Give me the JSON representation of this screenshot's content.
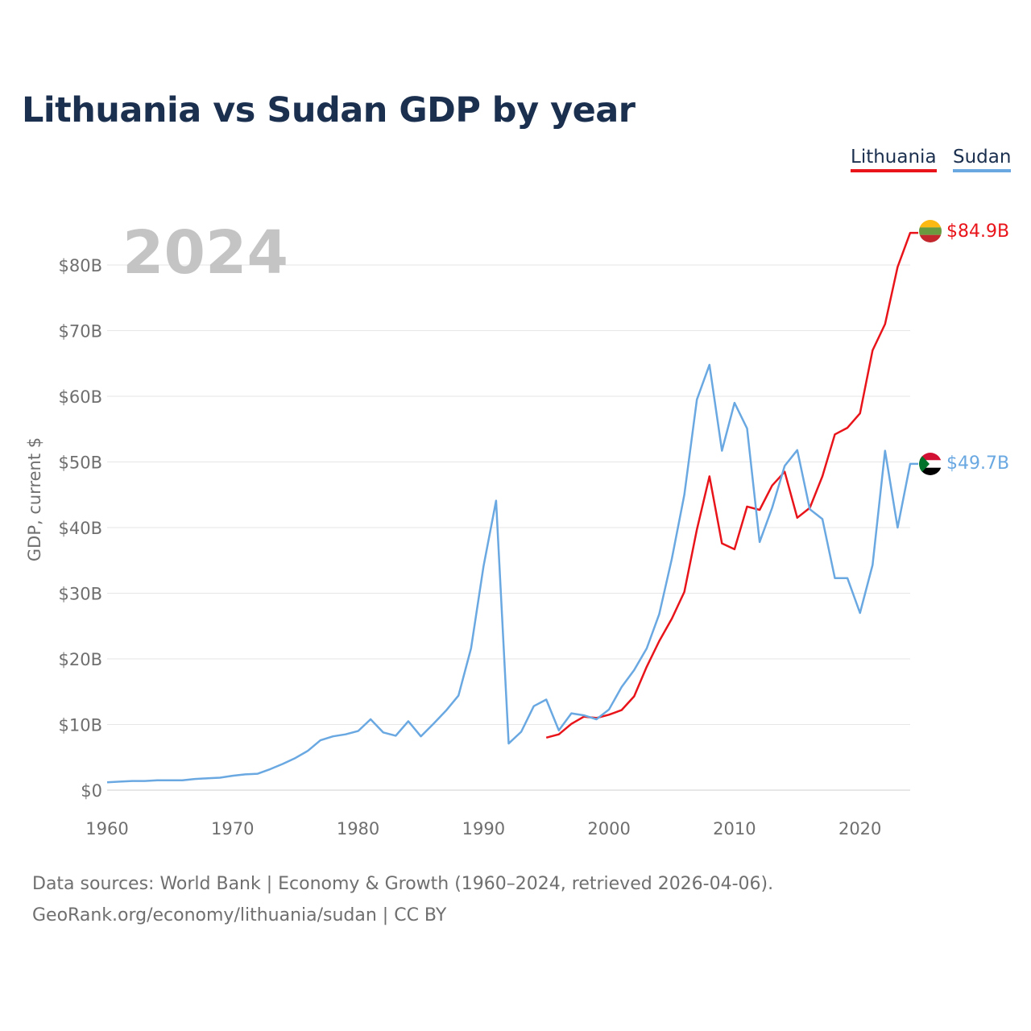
{
  "chart_data": {
    "type": "line",
    "title": "Lithuania vs Sudan GDP by year",
    "ylabel": "GDP, current $",
    "xlabel": "",
    "year_label": "2024",
    "xlim": [
      1960,
      2024
    ],
    "ylim": [
      0,
      85
    ],
    "x_ticks": [
      1960,
      1970,
      1980,
      1990,
      2000,
      2010,
      2020
    ],
    "y_ticks": [
      {
        "value": 0,
        "label": "$0"
      },
      {
        "value": 10,
        "label": "$10B"
      },
      {
        "value": 20,
        "label": "$20B"
      },
      {
        "value": 30,
        "label": "$30B"
      },
      {
        "value": 40,
        "label": "$40B"
      },
      {
        "value": 50,
        "label": "$50B"
      },
      {
        "value": 60,
        "label": "$60B"
      },
      {
        "value": 70,
        "label": "$70B"
      },
      {
        "value": 80,
        "label": "$80B"
      }
    ],
    "series": [
      {
        "name": "Lithuania",
        "color": "#e8141a",
        "end_label": "$84.9B",
        "start_year": 1995,
        "values": [
          8.0,
          8.5,
          10.1,
          11.2,
          11.0,
          11.5,
          12.2,
          14.3,
          18.8,
          22.7,
          26.1,
          30.2,
          39.7,
          47.8,
          37.6,
          36.7,
          43.2,
          42.7,
          46.4,
          48.5,
          41.5,
          43.0,
          47.8,
          54.2,
          55.2,
          57.4,
          67.0,
          71.0,
          79.7,
          84.9
        ]
      },
      {
        "name": "Sudan",
        "color": "#6aa8e2",
        "end_label": "$49.7B",
        "start_year": 1960,
        "values": [
          1.2,
          1.3,
          1.4,
          1.4,
          1.5,
          1.5,
          1.5,
          1.7,
          1.8,
          1.9,
          2.2,
          2.4,
          2.5,
          3.2,
          4.0,
          4.9,
          6.0,
          7.6,
          8.2,
          8.5,
          9.0,
          10.8,
          8.8,
          8.3,
          10.5,
          8.2,
          10.1,
          12.1,
          14.4,
          21.6,
          34.1,
          44.1,
          7.1,
          8.9,
          12.8,
          13.8,
          9.1,
          11.7,
          11.4,
          10.8,
          12.3,
          15.7,
          18.3,
          21.6,
          26.8,
          35.2,
          45.0,
          59.5,
          64.8,
          51.7,
          59.0,
          55.1,
          37.8,
          43.0,
          49.4,
          51.8,
          42.8,
          41.3,
          32.3,
          32.3,
          27.0,
          34.3,
          51.7,
          40.0,
          49.7
        ]
      }
    ]
  },
  "legend": {
    "lithuania": "Lithuania",
    "sudan": "Sudan"
  },
  "footer": {
    "source": "Data sources: World Bank | Economy & Growth (1960–2024, retrieved 2026-04-06).",
    "credit": "GeoRank.org/economy/lithuania/sudan | CC BY"
  },
  "flags": {
    "lithuania": [
      "#fdb913",
      "#6a9a3f",
      "#c1272d"
    ],
    "sudan": [
      "#d21034",
      "#ffffff",
      "#000000",
      "#007229"
    ]
  }
}
